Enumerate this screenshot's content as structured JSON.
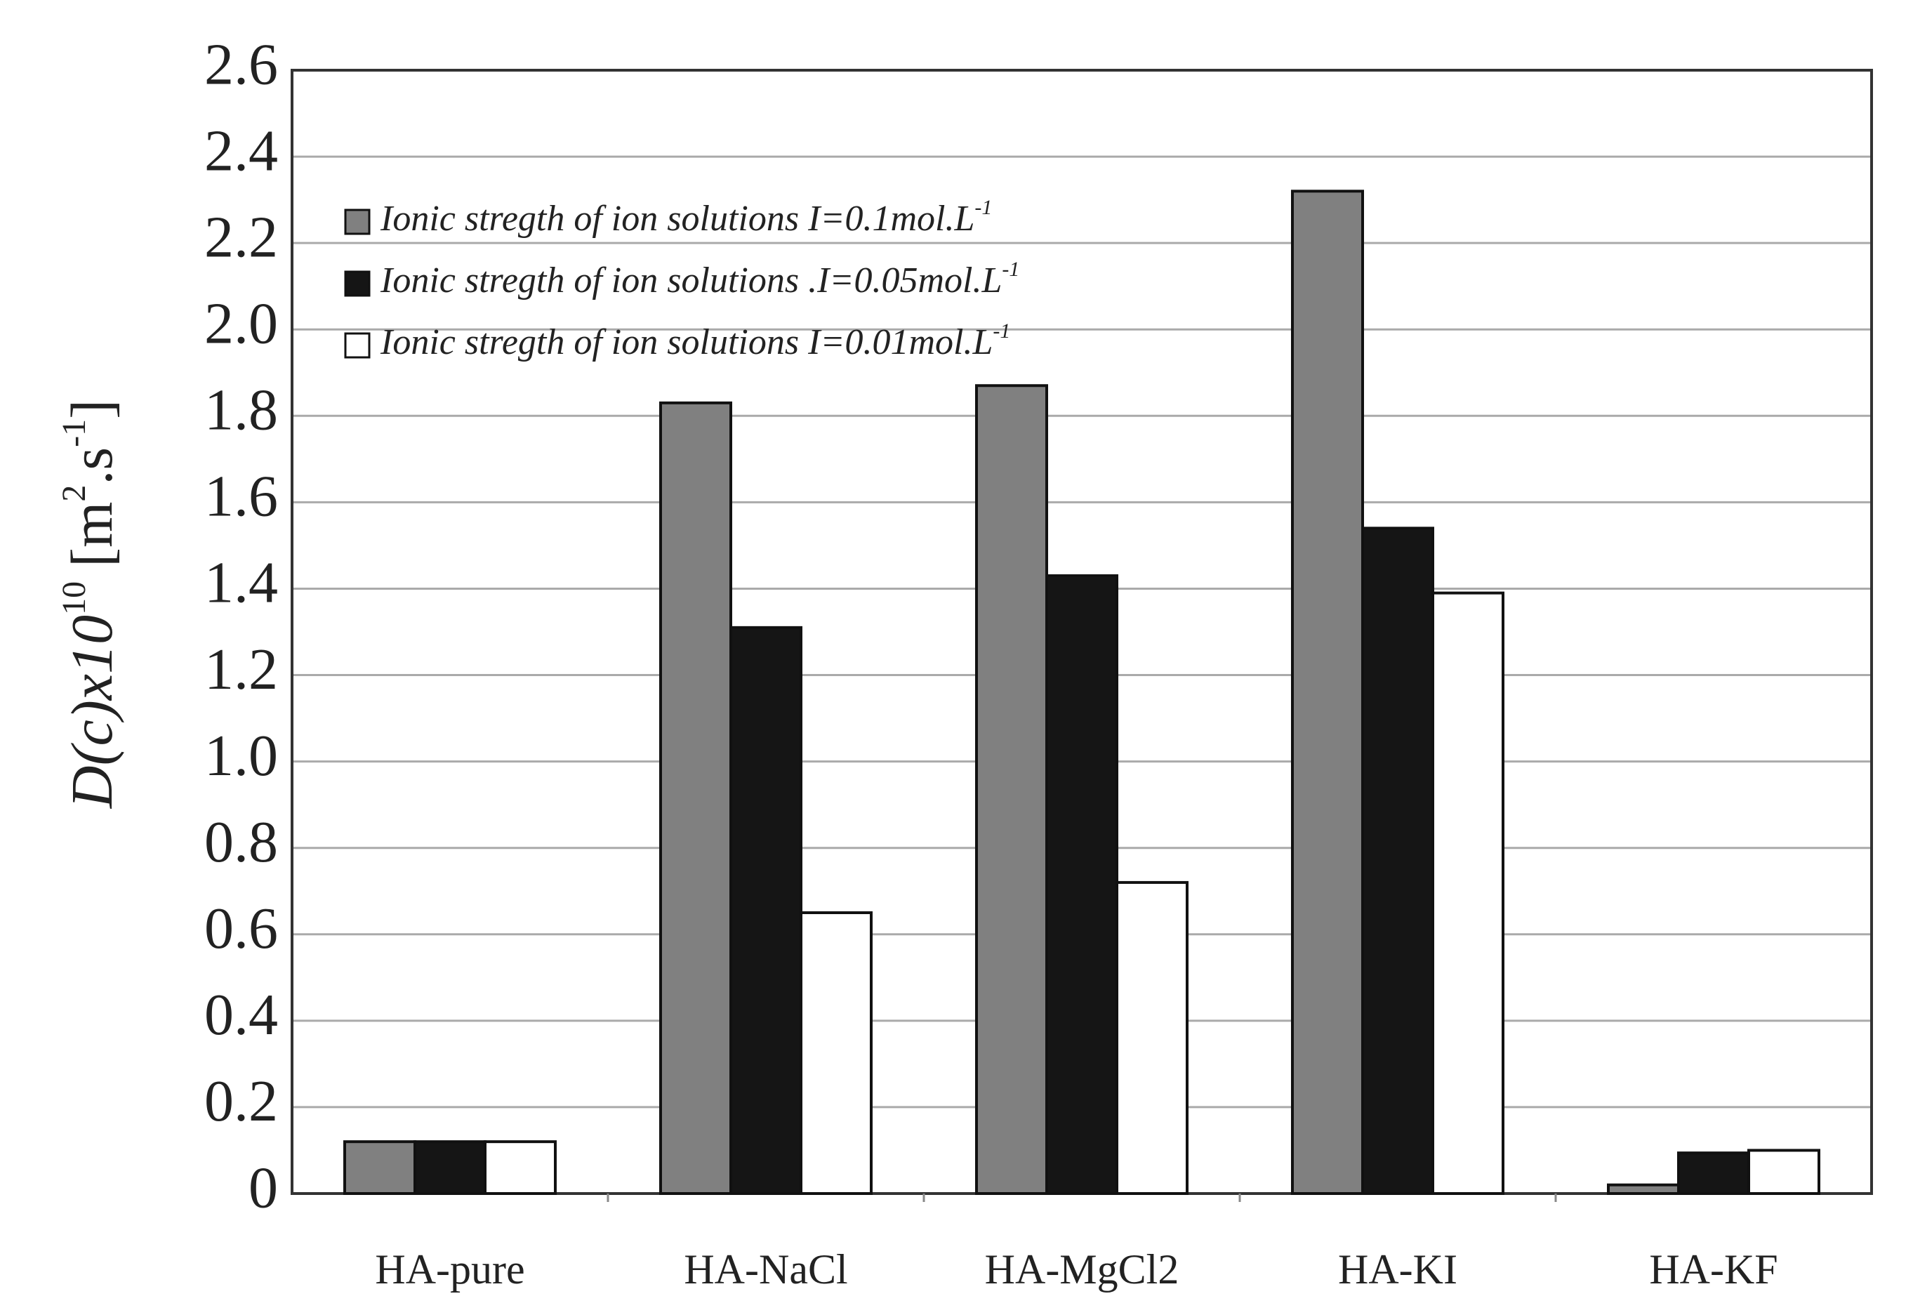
{
  "chart_data": {
    "type": "bar",
    "ylabel": {
      "main": "D(c)x10",
      "exp": "10",
      "unit": "[m",
      "unit_exp1": "2",
      "unit_mid": ".s",
      "unit_exp2": "-1",
      "close": "]"
    },
    "categories": [
      "HA-pure",
      "HA-NaCl",
      "HA-MgCl2",
      "HA-KI",
      "HA-KF"
    ],
    "series": [
      {
        "name": "Ionic stregth of ion solutions  I=0.1mol.L",
        "name_sup": "-1",
        "color": "#808080",
        "values": [
          0.12,
          1.83,
          1.87,
          2.32,
          0.02
        ]
      },
      {
        "name": "Ionic stregth of ion solutions .I=0.05mol.L",
        "name_sup": "-1",
        "color": "#151515",
        "values": [
          0.12,
          1.31,
          1.43,
          1.54,
          0.094
        ]
      },
      {
        "name": "Ionic stregth of ion solutions I=0.01mol.L",
        "name_sup": "-1",
        "color": "#ffffff",
        "values": [
          0.12,
          0.65,
          0.72,
          1.39,
          0.1
        ]
      }
    ],
    "ylim": [
      0,
      2.6
    ],
    "yticks": [
      0,
      0.2,
      0.4,
      0.6,
      0.8,
      {
        "value": 1,
        "label": "1.0"
      },
      1.2,
      1.4,
      1.6,
      1.8,
      {
        "value": 2,
        "label": "2.0"
      },
      2.2,
      2.4,
      2.6
    ],
    "grid": true
  }
}
